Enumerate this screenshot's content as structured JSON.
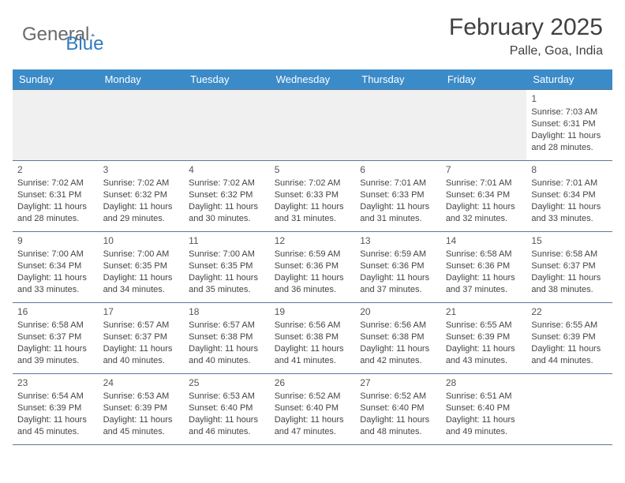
{
  "logo": {
    "text1": "General",
    "text2": "Blue"
  },
  "title": "February 2025",
  "location": "Palle, Goa, India",
  "colors": {
    "header_bg": "#3b8bc8",
    "header_text": "#ffffff",
    "row_border": "#5a7a99",
    "empty_bg": "#f0f0f0",
    "body_text": "#444444",
    "logo_gray": "#6a6a6a",
    "logo_blue": "#2f7bbf"
  },
  "weekdays": [
    "Sunday",
    "Monday",
    "Tuesday",
    "Wednesday",
    "Thursday",
    "Friday",
    "Saturday"
  ],
  "weeks": [
    [
      null,
      null,
      null,
      null,
      null,
      null,
      {
        "n": "1",
        "sr": "Sunrise: 7:03 AM",
        "ss": "Sunset: 6:31 PM",
        "dl": "Daylight: 11 hours and 28 minutes."
      }
    ],
    [
      {
        "n": "2",
        "sr": "Sunrise: 7:02 AM",
        "ss": "Sunset: 6:31 PM",
        "dl": "Daylight: 11 hours and 28 minutes."
      },
      {
        "n": "3",
        "sr": "Sunrise: 7:02 AM",
        "ss": "Sunset: 6:32 PM",
        "dl": "Daylight: 11 hours and 29 minutes."
      },
      {
        "n": "4",
        "sr": "Sunrise: 7:02 AM",
        "ss": "Sunset: 6:32 PM",
        "dl": "Daylight: 11 hours and 30 minutes."
      },
      {
        "n": "5",
        "sr": "Sunrise: 7:02 AM",
        "ss": "Sunset: 6:33 PM",
        "dl": "Daylight: 11 hours and 31 minutes."
      },
      {
        "n": "6",
        "sr": "Sunrise: 7:01 AM",
        "ss": "Sunset: 6:33 PM",
        "dl": "Daylight: 11 hours and 31 minutes."
      },
      {
        "n": "7",
        "sr": "Sunrise: 7:01 AM",
        "ss": "Sunset: 6:34 PM",
        "dl": "Daylight: 11 hours and 32 minutes."
      },
      {
        "n": "8",
        "sr": "Sunrise: 7:01 AM",
        "ss": "Sunset: 6:34 PM",
        "dl": "Daylight: 11 hours and 33 minutes."
      }
    ],
    [
      {
        "n": "9",
        "sr": "Sunrise: 7:00 AM",
        "ss": "Sunset: 6:34 PM",
        "dl": "Daylight: 11 hours and 33 minutes."
      },
      {
        "n": "10",
        "sr": "Sunrise: 7:00 AM",
        "ss": "Sunset: 6:35 PM",
        "dl": "Daylight: 11 hours and 34 minutes."
      },
      {
        "n": "11",
        "sr": "Sunrise: 7:00 AM",
        "ss": "Sunset: 6:35 PM",
        "dl": "Daylight: 11 hours and 35 minutes."
      },
      {
        "n": "12",
        "sr": "Sunrise: 6:59 AM",
        "ss": "Sunset: 6:36 PM",
        "dl": "Daylight: 11 hours and 36 minutes."
      },
      {
        "n": "13",
        "sr": "Sunrise: 6:59 AM",
        "ss": "Sunset: 6:36 PM",
        "dl": "Daylight: 11 hours and 37 minutes."
      },
      {
        "n": "14",
        "sr": "Sunrise: 6:58 AM",
        "ss": "Sunset: 6:36 PM",
        "dl": "Daylight: 11 hours and 37 minutes."
      },
      {
        "n": "15",
        "sr": "Sunrise: 6:58 AM",
        "ss": "Sunset: 6:37 PM",
        "dl": "Daylight: 11 hours and 38 minutes."
      }
    ],
    [
      {
        "n": "16",
        "sr": "Sunrise: 6:58 AM",
        "ss": "Sunset: 6:37 PM",
        "dl": "Daylight: 11 hours and 39 minutes."
      },
      {
        "n": "17",
        "sr": "Sunrise: 6:57 AM",
        "ss": "Sunset: 6:37 PM",
        "dl": "Daylight: 11 hours and 40 minutes."
      },
      {
        "n": "18",
        "sr": "Sunrise: 6:57 AM",
        "ss": "Sunset: 6:38 PM",
        "dl": "Daylight: 11 hours and 40 minutes."
      },
      {
        "n": "19",
        "sr": "Sunrise: 6:56 AM",
        "ss": "Sunset: 6:38 PM",
        "dl": "Daylight: 11 hours and 41 minutes."
      },
      {
        "n": "20",
        "sr": "Sunrise: 6:56 AM",
        "ss": "Sunset: 6:38 PM",
        "dl": "Daylight: 11 hours and 42 minutes."
      },
      {
        "n": "21",
        "sr": "Sunrise: 6:55 AM",
        "ss": "Sunset: 6:39 PM",
        "dl": "Daylight: 11 hours and 43 minutes."
      },
      {
        "n": "22",
        "sr": "Sunrise: 6:55 AM",
        "ss": "Sunset: 6:39 PM",
        "dl": "Daylight: 11 hours and 44 minutes."
      }
    ],
    [
      {
        "n": "23",
        "sr": "Sunrise: 6:54 AM",
        "ss": "Sunset: 6:39 PM",
        "dl": "Daylight: 11 hours and 45 minutes."
      },
      {
        "n": "24",
        "sr": "Sunrise: 6:53 AM",
        "ss": "Sunset: 6:39 PM",
        "dl": "Daylight: 11 hours and 45 minutes."
      },
      {
        "n": "25",
        "sr": "Sunrise: 6:53 AM",
        "ss": "Sunset: 6:40 PM",
        "dl": "Daylight: 11 hours and 46 minutes."
      },
      {
        "n": "26",
        "sr": "Sunrise: 6:52 AM",
        "ss": "Sunset: 6:40 PM",
        "dl": "Daylight: 11 hours and 47 minutes."
      },
      {
        "n": "27",
        "sr": "Sunrise: 6:52 AM",
        "ss": "Sunset: 6:40 PM",
        "dl": "Daylight: 11 hours and 48 minutes."
      },
      {
        "n": "28",
        "sr": "Sunrise: 6:51 AM",
        "ss": "Sunset: 6:40 PM",
        "dl": "Daylight: 11 hours and 49 minutes."
      },
      null
    ]
  ]
}
